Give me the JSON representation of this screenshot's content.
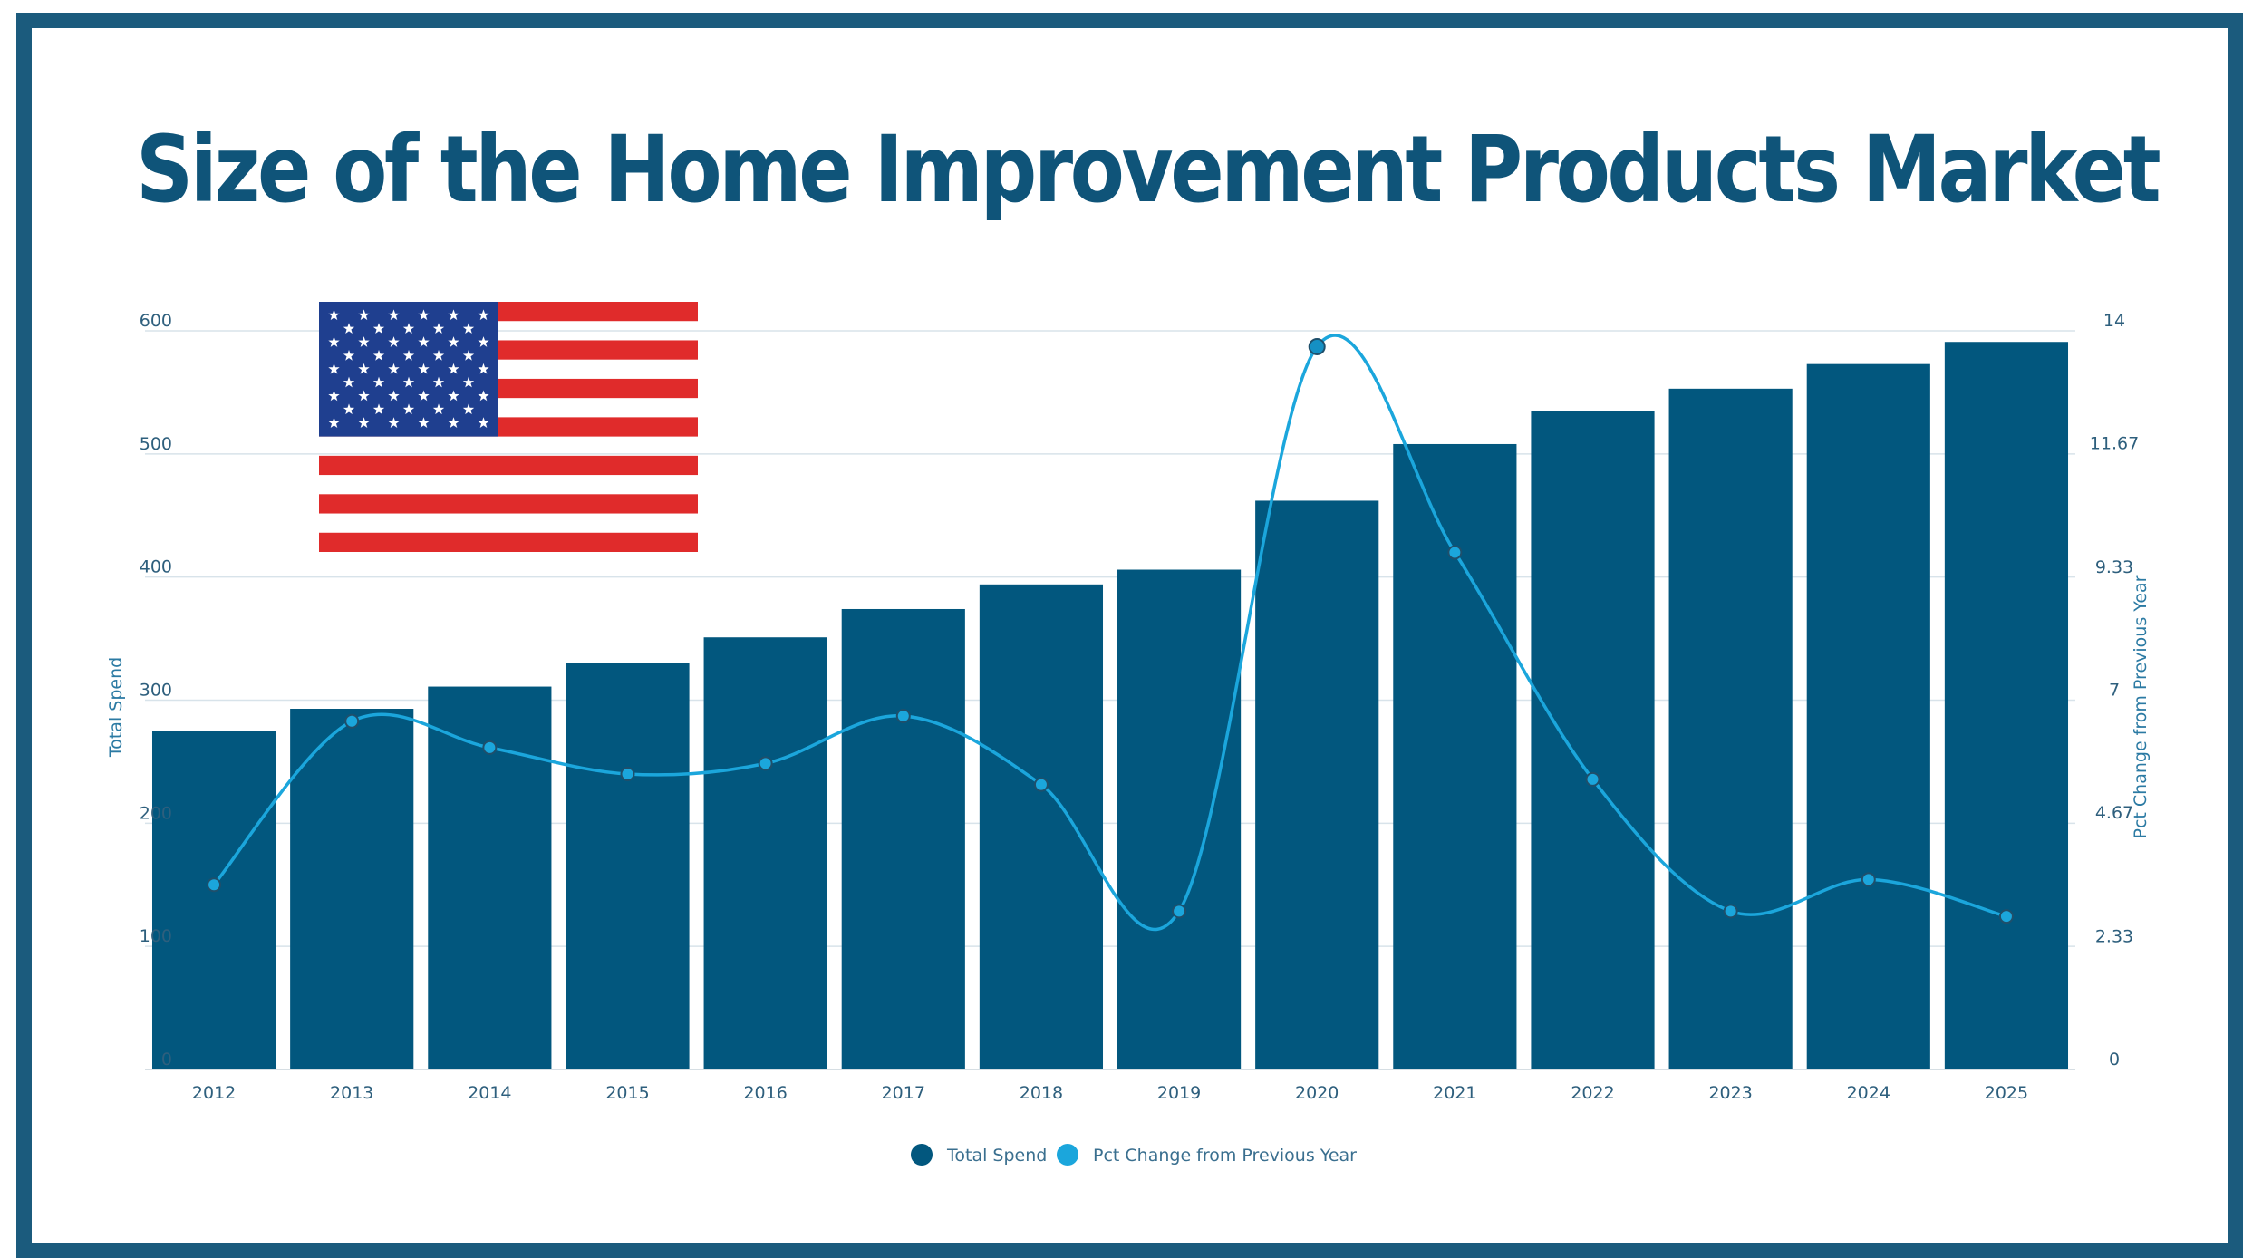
{
  "title": "Size of the Home Improvement Products Market",
  "colors": {
    "frame": "#1b5b7d",
    "title": "#0f5479",
    "bar": "#02577e",
    "line": "#1ba6dc",
    "flag_red": "#e02b2b",
    "flag_blue": "#1f3f8f"
  },
  "chart_data": {
    "type": "bar",
    "categories": [
      "2012",
      "2013",
      "2014",
      "2015",
      "2016",
      "2017",
      "2018",
      "2019",
      "2020",
      "2021",
      "2022",
      "2023",
      "2024",
      "2025"
    ],
    "series": [
      {
        "name": "Total Spend",
        "type": "bar",
        "axis": "left",
        "values": [
          275,
          293,
          311,
          330,
          351,
          374,
          394,
          406,
          462,
          508,
          535,
          553,
          573,
          591
        ]
      },
      {
        "name": "Pct Change from Previous Year",
        "type": "line",
        "axis": "right",
        "values": [
          3.5,
          6.6,
          6.1,
          5.6,
          5.8,
          6.7,
          5.4,
          3.0,
          13.7,
          9.8,
          5.5,
          3.0,
          3.6,
          2.9
        ]
      }
    ],
    "ylabel": "Total Spend",
    "ylabel_right": "Pct Change from Previous Year",
    "ylim": [
      0,
      600
    ],
    "ylim_right": [
      0,
      14
    ],
    "yticks": [
      "0",
      "100",
      "200",
      "300",
      "400",
      "500",
      "600"
    ],
    "yticks_right": [
      "0",
      "2.33",
      "4.67",
      "7",
      "9.33",
      "11.67",
      "14"
    ],
    "grid": true,
    "legend": "bottom-center",
    "legend_entries": [
      "Total Spend",
      "Pct Change from Previous Year"
    ]
  }
}
